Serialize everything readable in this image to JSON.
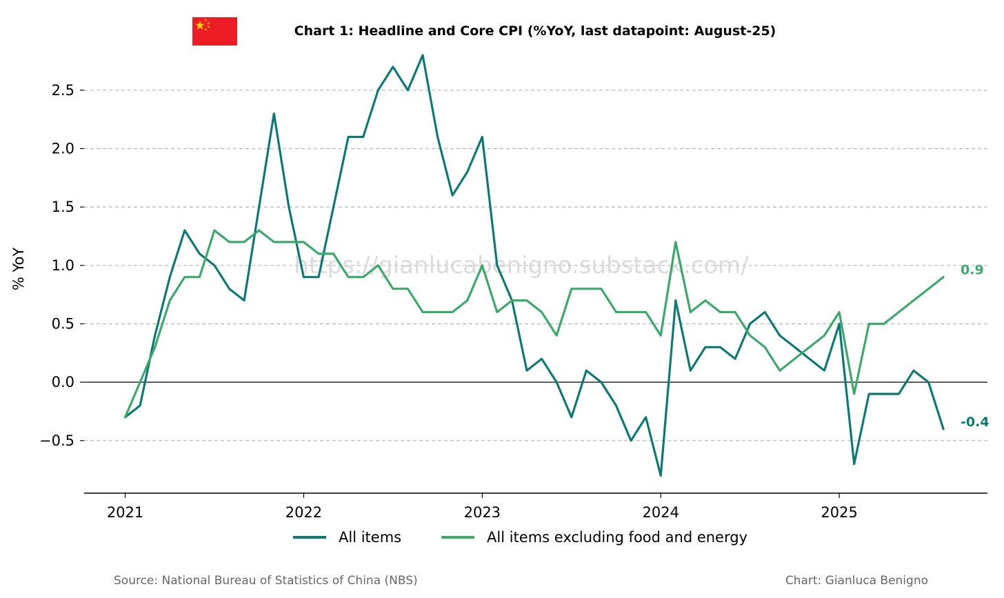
{
  "colors": {
    "headline": "#0b7a75",
    "core": "#3aaa6a",
    "grid": "#b3b3b3",
    "flag_red": "#ee1c25",
    "flag_star": "#ffde00"
  },
  "watermark": "https://gianlucabenigno.substack.com/",
  "footer": {
    "source": "Source: National Bureau of Statistics of China (NBS)",
    "credit": "Chart: Gianluca Benigno"
  },
  "flag_icon": "china-flag-icon",
  "chart_data": {
    "type": "line",
    "title": "Chart 1: Headline and Core CPI (%YoY, last datapoint: August-25)",
    "xlabel": "",
    "ylabel": "% YoY",
    "ylim": [
      -0.95,
      2.8
    ],
    "xlim": [
      2020.77,
      2025.83
    ],
    "grid": true,
    "legend_position": "bottom-center",
    "x_ticks": [
      2021,
      2022,
      2023,
      2024,
      2025
    ],
    "x_tick_labels": [
      "2021",
      "2022",
      "2023",
      "2024",
      "2025"
    ],
    "y_ticks": [
      -0.5,
      0.0,
      0.5,
      1.0,
      1.5,
      2.0,
      2.5
    ],
    "y_tick_labels": [
      "−0.5",
      "0.0",
      "0.5",
      "1.0",
      "1.5",
      "2.0",
      "2.5"
    ],
    "x_start": 2021.0,
    "x_step": 0.08333,
    "series": [
      {
        "name": "All items",
        "color_key": "headline",
        "end_label": "-0.4",
        "values": [
          -0.3,
          -0.2,
          0.4,
          0.9,
          1.3,
          1.1,
          1.0,
          0.8,
          0.7,
          1.5,
          2.3,
          1.5,
          0.9,
          0.9,
          1.5,
          2.1,
          2.1,
          2.5,
          2.7,
          2.5,
          2.8,
          2.1,
          1.6,
          1.8,
          2.1,
          1.0,
          0.7,
          0.1,
          0.2,
          0.0,
          -0.3,
          0.1,
          0.0,
          -0.2,
          -0.5,
          -0.3,
          -0.8,
          0.7,
          0.1,
          0.3,
          0.3,
          0.2,
          0.5,
          0.6,
          0.4,
          0.3,
          0.2,
          0.1,
          0.5,
          -0.7,
          -0.1,
          -0.1,
          -0.1,
          0.1,
          0.0,
          -0.4
        ]
      },
      {
        "name": "All items excluding food and energy",
        "color_key": "core",
        "end_label": "0.9",
        "values": [
          -0.3,
          0.0,
          0.3,
          0.7,
          0.9,
          0.9,
          1.3,
          1.2,
          1.2,
          1.3,
          1.2,
          1.2,
          1.2,
          1.1,
          1.1,
          0.9,
          0.9,
          1.0,
          0.8,
          0.8,
          0.6,
          0.6,
          0.6,
          0.7,
          1.0,
          0.6,
          0.7,
          0.7,
          0.6,
          0.4,
          0.8,
          0.8,
          0.8,
          0.6,
          0.6,
          0.6,
          0.4,
          1.2,
          0.6,
          0.7,
          0.6,
          0.6,
          0.4,
          0.3,
          0.1,
          0.2,
          0.3,
          0.4,
          0.6,
          -0.1,
          0.5,
          0.5,
          0.6,
          0.7,
          0.8,
          0.9
        ]
      }
    ]
  }
}
